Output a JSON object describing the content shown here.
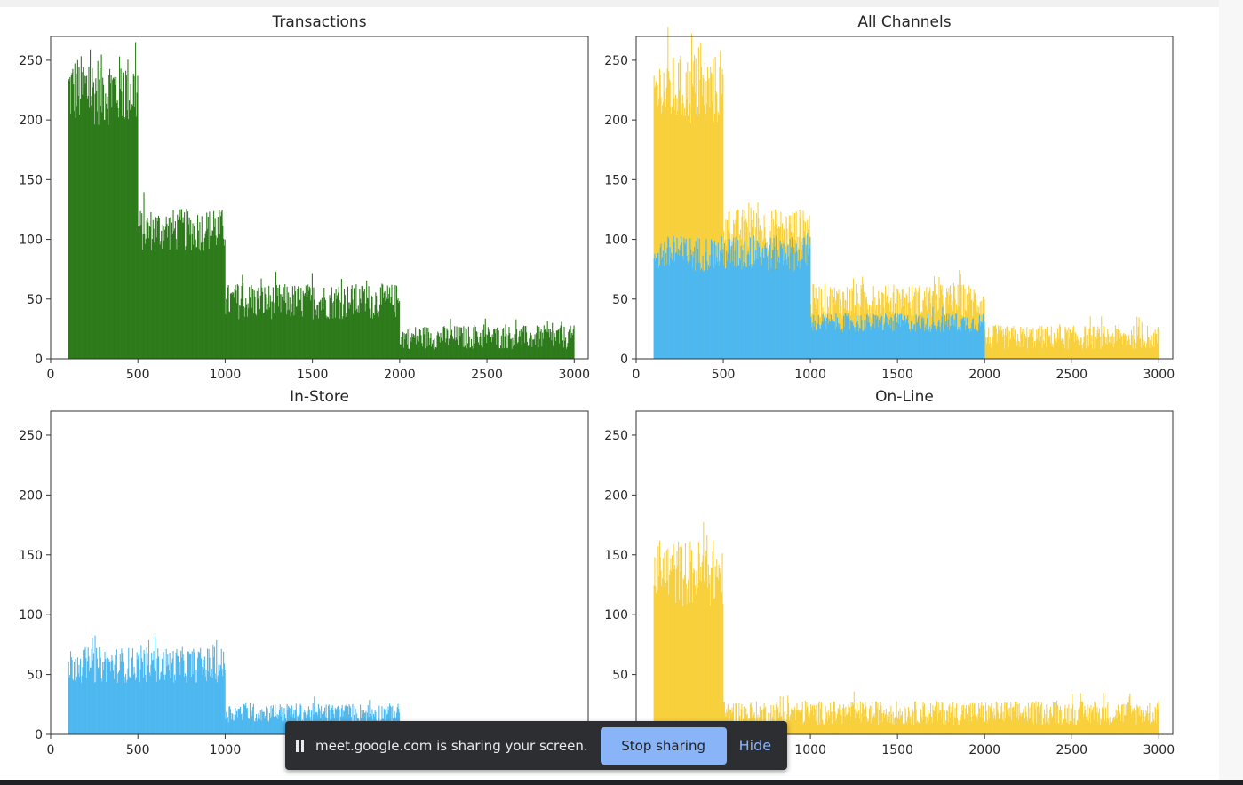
{
  "chart_data": [
    {
      "type": "bar",
      "title": "Transactions",
      "xlabel": "",
      "ylabel": "",
      "xlim": [
        0,
        3080
      ],
      "ylim": [
        0,
        270
      ],
      "xticks": [
        "0",
        "500",
        "1000",
        "1500",
        "2000",
        "2500",
        "3000"
      ],
      "yticks": [
        "0",
        "50",
        "100",
        "150",
        "200",
        "250"
      ],
      "series": [
        {
          "color": "#2c7a1a",
          "segments": [
            [
              100,
              500,
              225,
              30
            ],
            [
              500,
              1000,
              108,
              18
            ],
            [
              1000,
              2000,
              48,
              15
            ],
            [
              2000,
              3000,
              18,
              10
            ]
          ]
        }
      ]
    },
    {
      "type": "bar",
      "title": "All Channels",
      "xlabel": "",
      "ylabel": "",
      "xlim": [
        0,
        3080
      ],
      "ylim": [
        0,
        270
      ],
      "xticks": [
        "0",
        "500",
        "1000",
        "1500",
        "2000",
        "2500",
        "3000"
      ],
      "yticks": [
        "0",
        "50",
        "100",
        "150",
        "200",
        "250"
      ],
      "series": [
        {
          "color": "#f8d03c",
          "segments": [
            [
              100,
              500,
              225,
              30
            ],
            [
              500,
              1000,
              108,
              18
            ],
            [
              1000,
              2000,
              48,
              15
            ],
            [
              2000,
              3000,
              18,
              10
            ]
          ]
        },
        {
          "color": "#4db8ef",
          "segments": [
            [
              100,
              1000,
              88,
              15
            ],
            [
              1000,
              2000,
              30,
              8
            ]
          ]
        }
      ]
    },
    {
      "type": "bar",
      "title": "In-Store",
      "xlabel": "",
      "ylabel": "",
      "xlim": [
        0,
        3080
      ],
      "ylim": [
        0,
        270
      ],
      "xticks": [
        "0",
        "500",
        "1000",
        "1500",
        "2000",
        "2500",
        "3000"
      ],
      "yticks": [
        "0",
        "50",
        "100",
        "150",
        "200",
        "250"
      ],
      "series": [
        {
          "color": "#4db8ef",
          "segments": [
            [
              100,
              1000,
              58,
              15
            ],
            [
              1000,
              2000,
              18,
              8
            ]
          ]
        }
      ]
    },
    {
      "type": "bar",
      "title": "On-Line",
      "xlabel": "",
      "ylabel": "",
      "xlim": [
        0,
        3080
      ],
      "ylim": [
        0,
        270
      ],
      "xticks": [
        "0",
        "500",
        "1000",
        "1500",
        "2000",
        "2500",
        "3000"
      ],
      "yticks": [
        "0",
        "50",
        "100",
        "150",
        "200",
        "250"
      ],
      "series": [
        {
          "color": "#f8d03c",
          "segments": [
            [
              100,
              500,
              135,
              28
            ],
            [
              500,
              3000,
              18,
              10
            ]
          ]
        }
      ]
    }
  ],
  "share_banner": {
    "pause_icon": "pause-icon",
    "text": "meet.google.com is sharing your screen.",
    "stop_label": "Stop sharing",
    "hide_label": "Hide"
  }
}
